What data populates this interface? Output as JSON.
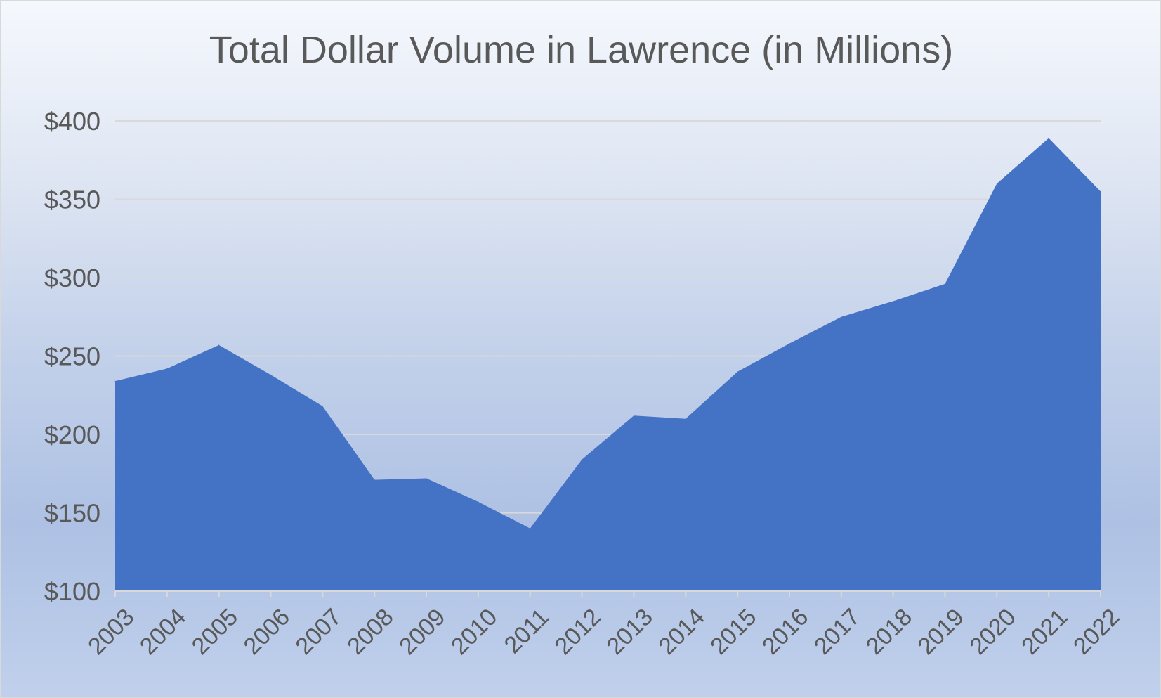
{
  "chart_data": {
    "type": "area",
    "title": "Total Dollar Volume in Lawrence (in Millions)",
    "xlabel": "",
    "ylabel": "",
    "categories": [
      "2003",
      "2004",
      "2005",
      "2006",
      "2007",
      "2008",
      "2009",
      "2010",
      "2011",
      "2012",
      "2013",
      "2014",
      "2015",
      "2016",
      "2017",
      "2018",
      "2019",
      "2020",
      "2021",
      "2022"
    ],
    "series": [
      {
        "values": [
          234,
          242,
          257,
          238,
          218,
          171,
          172,
          157,
          140,
          184,
          212,
          210,
          240,
          258,
          275,
          285,
          296,
          360,
          389,
          355
        ]
      }
    ],
    "ylim": [
      100,
      400
    ],
    "yticks": [
      100,
      150,
      200,
      250,
      300,
      350,
      400
    ],
    "ytick_labels": [
      "$100",
      "$150",
      "$200",
      "$250",
      "$300",
      "$350",
      "$400"
    ],
    "grid": true,
    "legend": "none",
    "colors": {
      "area": "#4472c4",
      "gridline": "#d9d9d9",
      "axis": "#d9d9d9",
      "text": "#595959"
    }
  }
}
